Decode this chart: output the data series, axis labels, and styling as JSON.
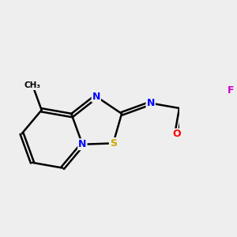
{
  "background_color": "#eeeeee",
  "atom_color_N": "#0000ff",
  "atom_color_S": "#ccaa00",
  "atom_color_O": "#ff0000",
  "atom_color_F": "#cc00cc",
  "atom_color_C": "#000000",
  "bond_lw": 1.8,
  "dbo": 0.055,
  "figsize": [
    3.0,
    3.0
  ],
  "dpi": 100,
  "xlim": [
    -2.3,
    3.5
  ],
  "ylim": [
    -2.0,
    1.8
  ]
}
